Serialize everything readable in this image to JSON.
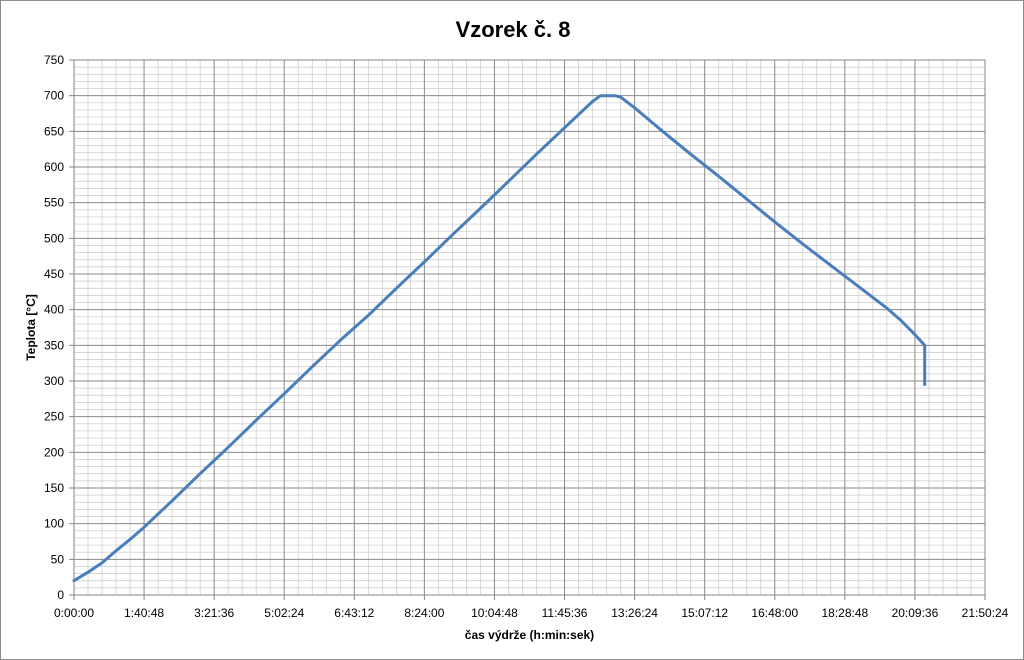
{
  "chart_data": {
    "type": "line",
    "title": "Vzorek č. 8",
    "xlabel": "čas  výdrže (h:min:sek)",
    "ylabel": "Teplota  [°C]",
    "x_unit": "h:min:sek",
    "xlim": [
      "0:00:00",
      "21:50:24"
    ],
    "ylim": [
      0,
      750
    ],
    "x_ticks": [
      "0:00:00",
      "1:40:48",
      "3:21:36",
      "5:02:24",
      "6:43:12",
      "8:24:00",
      "10:04:48",
      "11:45:36",
      "13:26:24",
      "15:07:12",
      "16:48:00",
      "18:28:48",
      "20:09:36",
      "21:50:24"
    ],
    "y_ticks": [
      0,
      50,
      100,
      150,
      200,
      250,
      300,
      350,
      400,
      450,
      500,
      550,
      600,
      650,
      700,
      750
    ],
    "grid": true,
    "legend": "none",
    "series_color": "#4a7ebb",
    "series": [
      {
        "x": [
          "0:00:00",
          "0:20:10",
          "0:40:19",
          "1:00:29",
          "1:20:38",
          "1:40:48",
          "2:21:07",
          "3:01:26",
          "3:41:46",
          "4:22:05",
          "5:02:24",
          "5:42:43",
          "6:23:02",
          "7:03:22",
          "7:43:41",
          "8:24:00",
          "9:04:19",
          "9:44:38",
          "10:24:58",
          "11:05:17",
          "11:45:36",
          "12:25:55",
          "12:37:00",
          "12:58:10",
          "13:06:14",
          "13:26:24",
          "14:06:43",
          "14:47:02",
          "15:27:22",
          "16:07:41",
          "16:48:00",
          "17:28:19",
          "18:08:38",
          "18:48:58",
          "19:29:17",
          "19:49:26",
          "20:09:36",
          "20:23:41",
          "20:23:41",
          "20:23:41"
        ],
        "y": [
          20,
          32,
          45,
          62,
          78,
          95,
          132,
          170,
          207,
          245,
          282,
          320,
          357,
          392,
          430,
          467,
          505,
          542,
          580,
          618,
          655,
          692,
          700,
          700,
          698,
          683,
          650,
          618,
          587,
          555,
          523,
          492,
          462,
          432,
          402,
          385,
          365,
          350,
          340,
          295
        ]
      }
    ]
  }
}
